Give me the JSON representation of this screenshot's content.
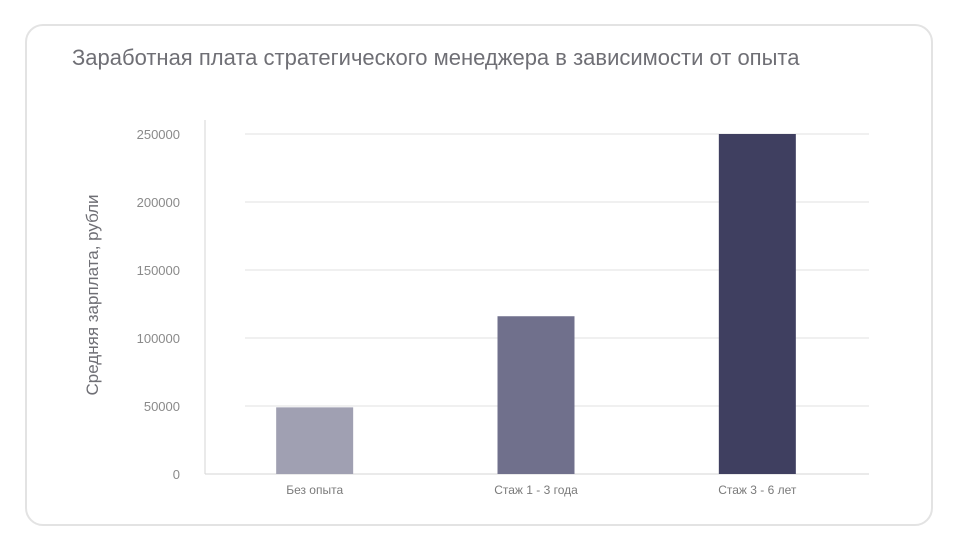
{
  "chart_data": {
    "type": "bar",
    "title": "Заработная плата стратегического менеджера в зависимости от опыта",
    "ylabel": "Средняя зарплата, рубли",
    "xlabel": "",
    "categories": [
      "Без опыта",
      "Стаж 1 - 3 года",
      "Стаж 3 - 6 лет"
    ],
    "values": [
      49000,
      116000,
      250000
    ],
    "bar_colors": [
      "#a0a0b2",
      "#70708c",
      "#3f3f60"
    ],
    "ylim": [
      0,
      250000
    ],
    "yticks": [
      0,
      50000,
      100000,
      150000,
      200000,
      250000
    ],
    "grid": true,
    "legend": "none"
  }
}
